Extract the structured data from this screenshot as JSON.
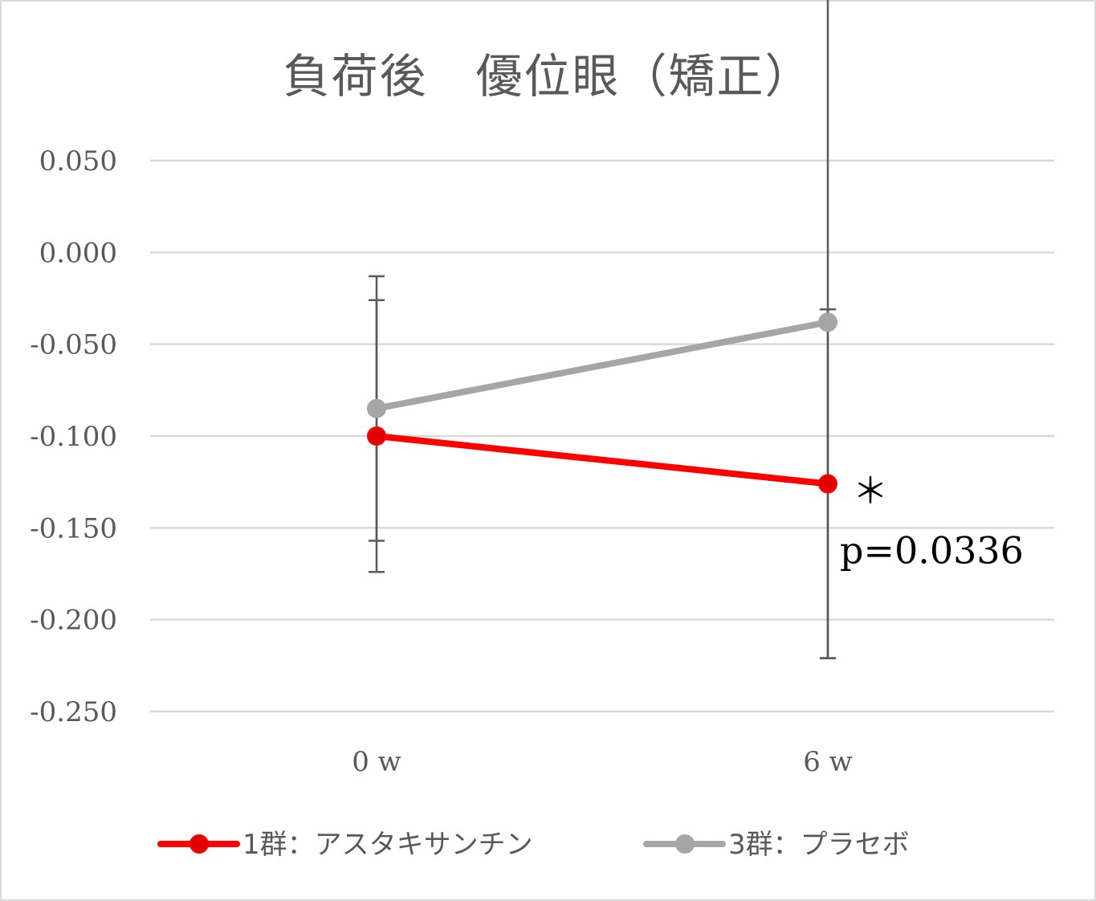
{
  "chart_data": {
    "type": "line",
    "title": "負荷後　優位眼（矯正）",
    "xlabel": "",
    "ylabel": "",
    "categories": [
      "0w",
      "6w"
    ],
    "category_labels": [
      "0 w",
      "6 w"
    ],
    "ylim": [
      -0.25,
      0.05
    ],
    "yticks": [
      0.05,
      0.0,
      -0.05,
      -0.1,
      -0.15,
      -0.2,
      -0.25
    ],
    "ytick_labels": [
      "0.050",
      "0.000",
      "-0.050",
      "-0.100",
      "-0.150",
      "-0.200",
      "-0.250"
    ],
    "grid": true,
    "legend_position": "bottom",
    "series": [
      {
        "name": "1群：アスタキサンチン",
        "color": "#ff0000",
        "marker_color": "#e00000",
        "values": [
          -0.1,
          -0.126
        ],
        "error": [
          0.074,
          0.095
        ]
      },
      {
        "name": "3群：プラセボ",
        "color": "#a6a6a6",
        "marker_color": "#a6a6a6",
        "values": [
          -0.085,
          -0.038
        ],
        "error": [
          0.072,
          0.183
        ]
      }
    ],
    "annotations": [
      {
        "text": "＊",
        "series": 0,
        "category": "6w"
      },
      {
        "text": "p=0.0336",
        "series": 0,
        "category": "6w"
      }
    ]
  }
}
